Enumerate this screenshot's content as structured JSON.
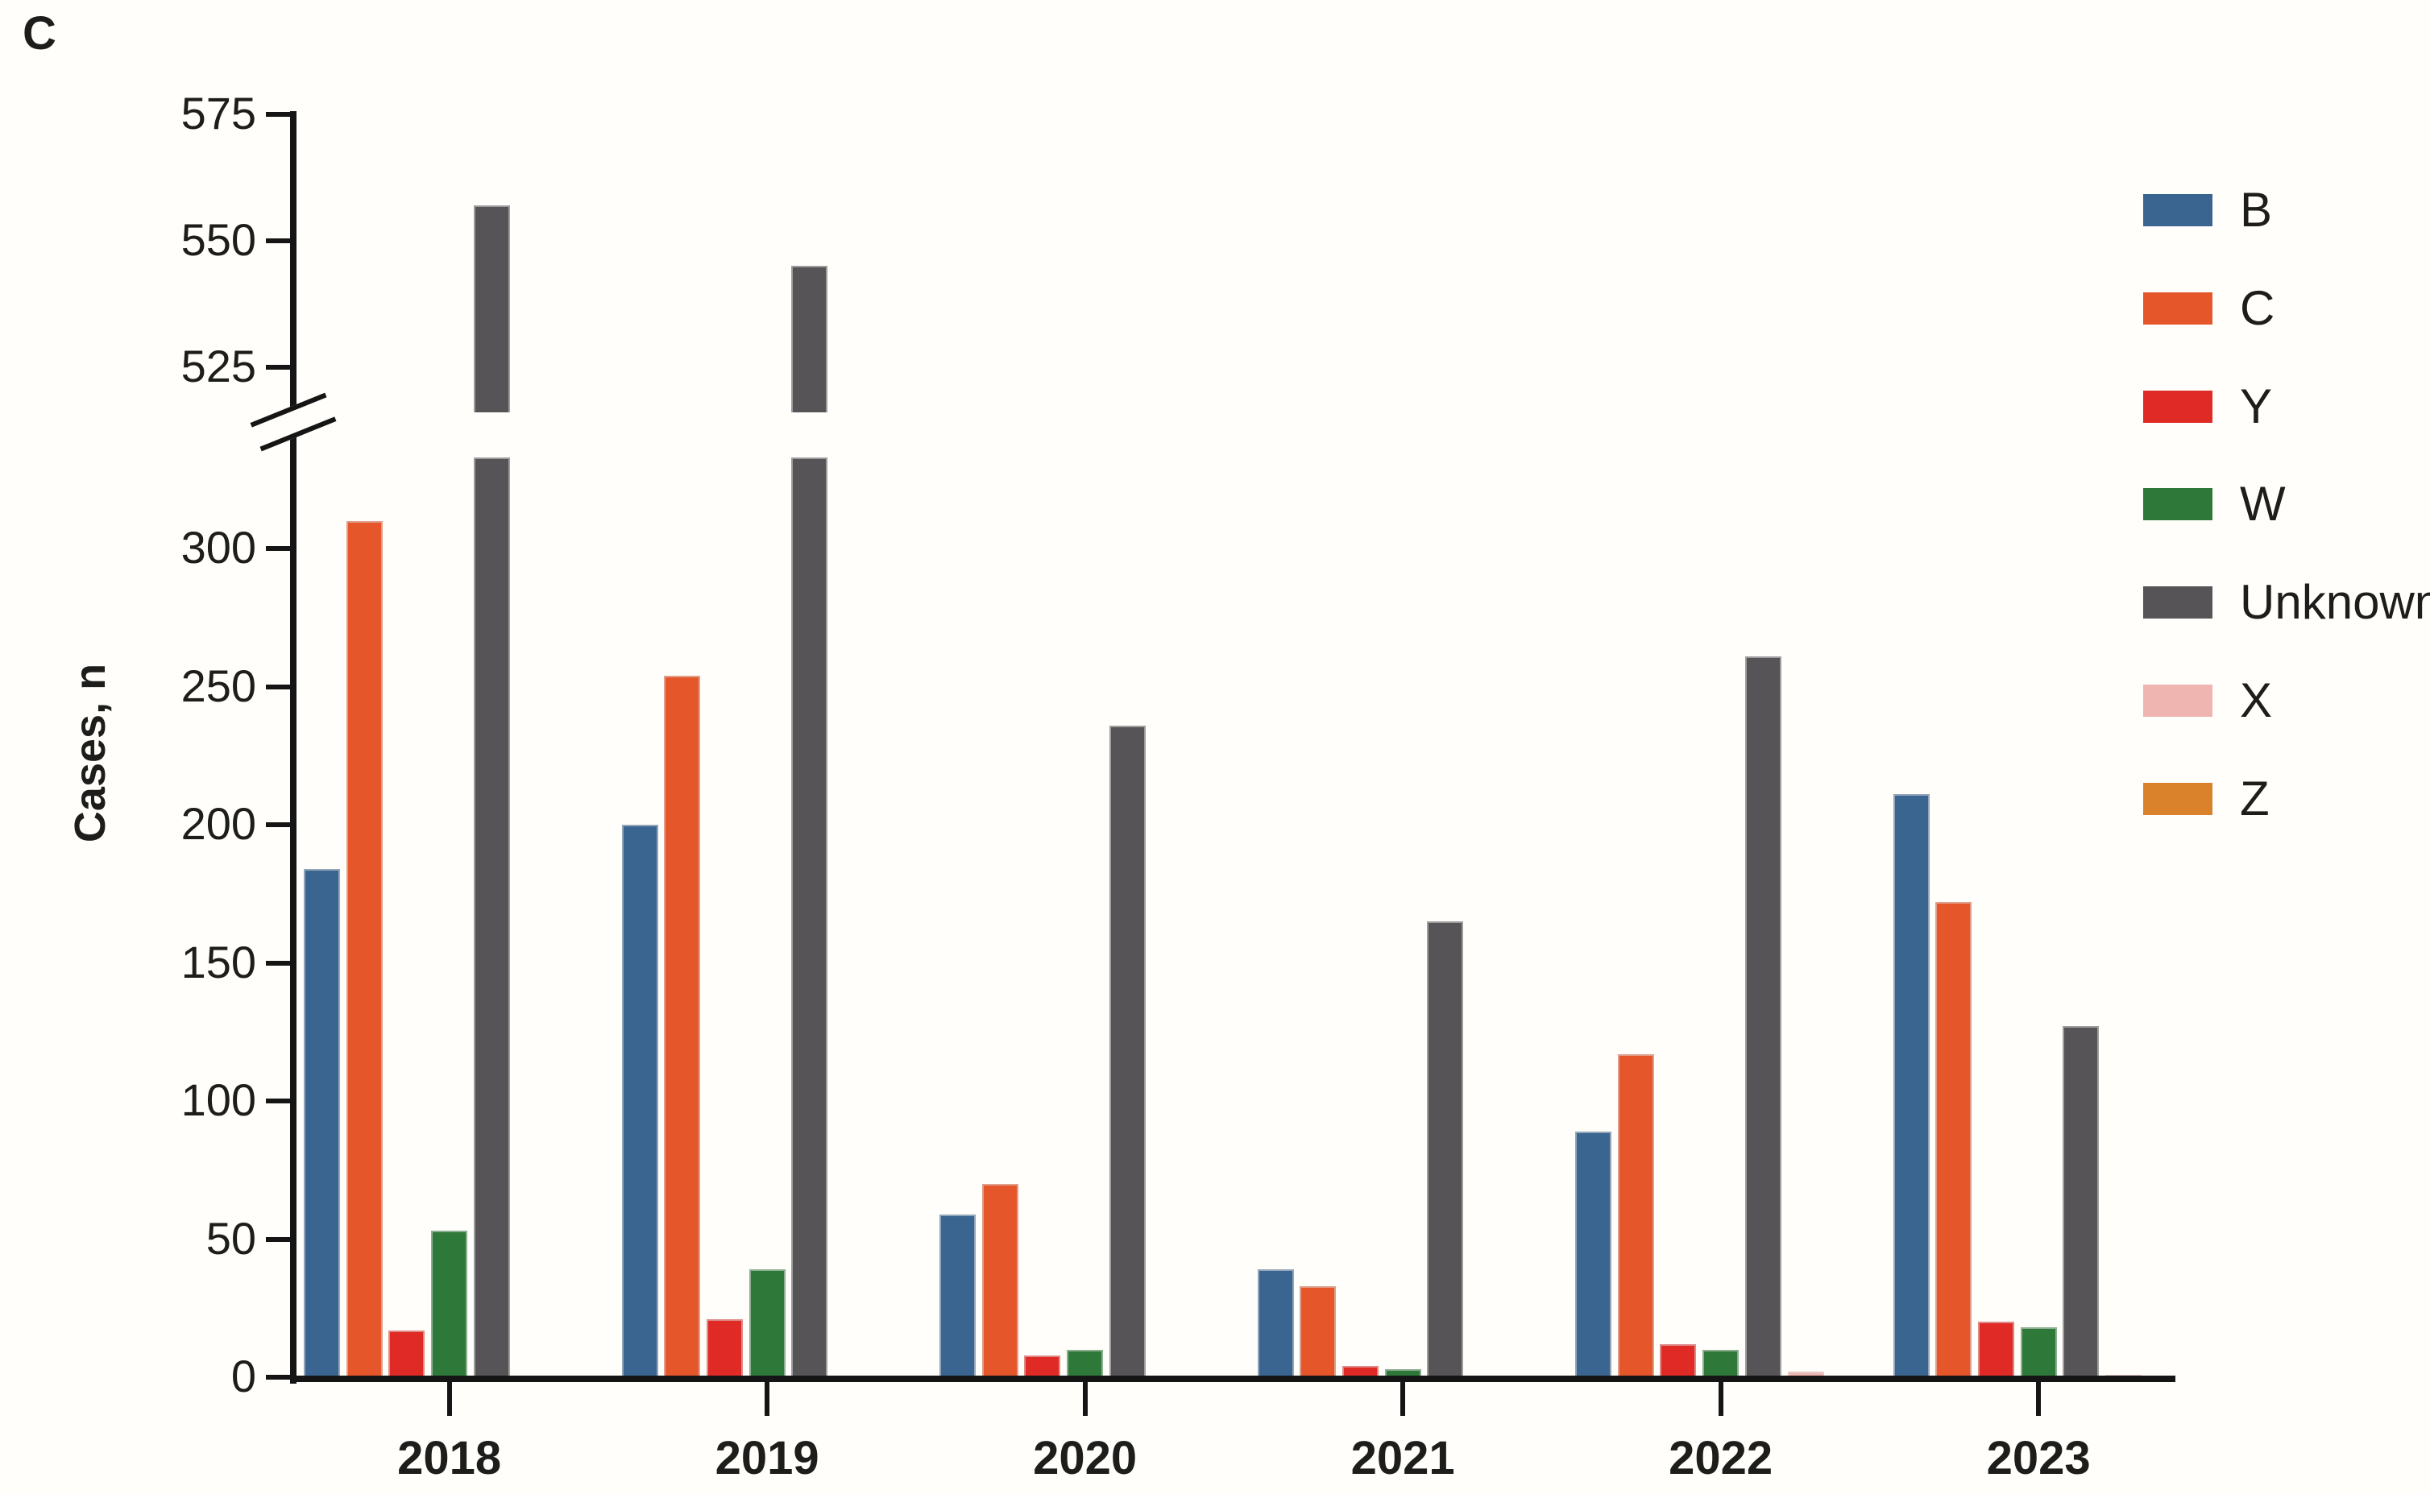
{
  "panel_label": "C",
  "background_color": "#FFFEFA",
  "axis_color": "#151515",
  "chart_data": {
    "type": "bar",
    "title": "",
    "xlabel": "",
    "ylabel": "Cases, n",
    "grid": false,
    "legend_position": "right",
    "categories": [
      "2018",
      "2019",
      "2020",
      "2021",
      "2022",
      "2023"
    ],
    "series": [
      {
        "name": "B",
        "color": "#3A6590",
        "values": [
          184,
          200,
          59,
          39,
          89,
          211
        ]
      },
      {
        "name": "C",
        "color": "#E5572B",
        "values": [
          310,
          254,
          70,
          33,
          117,
          172
        ]
      },
      {
        "name": "Y",
        "color": "#DF2A26",
        "values": [
          17,
          21,
          8,
          4,
          12,
          20
        ]
      },
      {
        "name": "W",
        "color": "#2E7839",
        "values": [
          53,
          39,
          10,
          3,
          10,
          18
        ]
      },
      {
        "name": "Unknown",
        "color": "#565456",
        "values": [
          557,
          545,
          236,
          165,
          261,
          127
        ]
      },
      {
        "name": "X",
        "color": "#EFB5B1",
        "values": [
          0,
          0,
          0,
          0,
          2,
          1
        ]
      },
      {
        "name": "Z",
        "color": "#D9822B",
        "values": [
          0,
          0,
          0,
          0,
          0,
          0
        ]
      }
    ],
    "y_axis_break": {
      "lower_max": 310,
      "upper_min": 525,
      "upper_max": 575
    },
    "lower_ticks": [
      0,
      50,
      100,
      150,
      200,
      250,
      300
    ],
    "upper_ticks": [
      525,
      550,
      575
    ]
  }
}
